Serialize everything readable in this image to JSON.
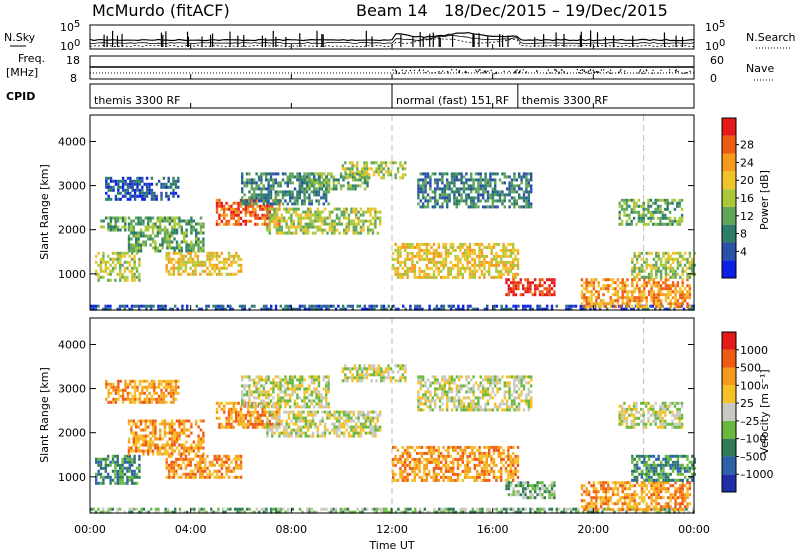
{
  "header": {
    "station": "McMurdo (fitACF)",
    "beam": "Beam 14",
    "date_range": "18/Dec/2015 – 19/Dec/2015"
  },
  "nsky_panel": {
    "left_label": "N.Sky",
    "right_label": "N.Search",
    "left_ticks": [
      {
        "base": "10",
        "exp": "5"
      },
      {
        "base": "10",
        "exp": "0"
      }
    ],
    "right_ticks": [
      {
        "base": "10",
        "exp": "5"
      },
      {
        "base": "10",
        "exp": "0"
      }
    ]
  },
  "freq_panel": {
    "left_label": "Freq.",
    "left_unit": "[MHz]",
    "left_ticks": [
      "18",
      "8"
    ],
    "right_label": "Nave",
    "right_ticks": [
      "60",
      "0"
    ]
  },
  "cpid_panel": {
    "label": "CPID",
    "segments": [
      {
        "name": "themis 3300 RF",
        "start_h": 0.0,
        "end_h": 12.0
      },
      {
        "name": "normal (fast) 151 RF",
        "start_h": 12.0,
        "end_h": 17.0
      },
      {
        "name": "themis 3300 RF",
        "start_h": 17.0,
        "end_h": 22.0
      }
    ],
    "dashed_marks_h": [
      12.0,
      22.0
    ]
  },
  "x_axis": {
    "label": "Time UT",
    "ticks": [
      "00:00",
      "04:00",
      "08:00",
      "12:00",
      "16:00",
      "20:00",
      "00:00"
    ],
    "range_h": [
      0,
      24
    ]
  },
  "chart_data": [
    {
      "type": "heatmap",
      "quantity": "Power",
      "ylabel": "Slant Range [km]",
      "ylim": [
        180,
        4600
      ],
      "yticks": [
        1000,
        2000,
        3000,
        4000
      ],
      "xlim": [
        0,
        24
      ],
      "colorbar": {
        "label": "Power [dB]",
        "ticks": [
          "4",
          "8",
          "12",
          "16",
          "20",
          "24",
          "28"
        ],
        "colors": [
          "#0b22e5",
          "#2a50a8",
          "#2e7d6a",
          "#5fa55a",
          "#a8c83a",
          "#f2c22a",
          "#f59a1b",
          "#ef5a14",
          "#e41a1a"
        ]
      },
      "echo_regions": [
        {
          "t0": 0.0,
          "t1": 24.0,
          "r0": 180,
          "r1": 300,
          "level": 1
        },
        {
          "t0": 0.2,
          "t1": 2.0,
          "r0": 850,
          "r1": 1500,
          "level": 4
        },
        {
          "t0": 0.4,
          "t1": 1.4,
          "r0": 2000,
          "r1": 2300,
          "level": 3
        },
        {
          "t0": 0.6,
          "t1": 3.5,
          "r0": 2700,
          "r1": 3200,
          "level": 1
        },
        {
          "t0": 1.5,
          "t1": 4.5,
          "r0": 1500,
          "r1": 2300,
          "level": 3
        },
        {
          "t0": 3.0,
          "t1": 6.0,
          "r0": 1000,
          "r1": 1500,
          "level": 5
        },
        {
          "t0": 5.0,
          "t1": 7.5,
          "r0": 2100,
          "r1": 2700,
          "level": 7
        },
        {
          "t0": 6.0,
          "t1": 9.5,
          "r0": 2600,
          "r1": 3300,
          "level": 2
        },
        {
          "t0": 7.0,
          "t1": 11.5,
          "r0": 1900,
          "r1": 2500,
          "level": 4
        },
        {
          "t0": 8.5,
          "t1": 11.0,
          "r0": 2900,
          "r1": 3300,
          "level": 3
        },
        {
          "t0": 10.0,
          "t1": 12.5,
          "r0": 3200,
          "r1": 3550,
          "level": 4
        },
        {
          "t0": 12.0,
          "t1": 17.0,
          "r0": 900,
          "r1": 1700,
          "level": 5
        },
        {
          "t0": 13.0,
          "t1": 17.5,
          "r0": 2500,
          "r1": 3300,
          "level": 2
        },
        {
          "t0": 16.5,
          "t1": 18.5,
          "r0": 500,
          "r1": 900,
          "level": 8
        },
        {
          "t0": 19.5,
          "t1": 23.8,
          "r0": 250,
          "r1": 900,
          "level": 6
        },
        {
          "t0": 21.0,
          "t1": 23.5,
          "r0": 2100,
          "r1": 2700,
          "level": 3
        },
        {
          "t0": 21.5,
          "t1": 24.0,
          "r0": 900,
          "r1": 1500,
          "level": 4
        }
      ]
    },
    {
      "type": "heatmap",
      "quantity": "Velocity",
      "ylabel": "Slant Range [km]",
      "ylim": [
        180,
        4600
      ],
      "yticks": [
        1000,
        2000,
        3000,
        4000
      ],
      "xlim": [
        0,
        24
      ],
      "colorbar": {
        "label": "Velocity [m s⁻¹]",
        "ticks": [
          "1000",
          "500",
          "100",
          "25",
          "–25",
          "–100",
          "–500",
          "–1000"
        ],
        "colors": [
          "#1f2fa8",
          "#2b62a8",
          "#2f7d56",
          "#69b840",
          "#c9c9c2",
          "#f6c126",
          "#f59a1b",
          "#ef5a14",
          "#e41a1a"
        ]
      },
      "echo_regions": [
        {
          "t0": 0.0,
          "t1": 24.0,
          "r0": 180,
          "r1": 300,
          "level": 3
        },
        {
          "t0": 0.2,
          "t1": 2.0,
          "r0": 850,
          "r1": 1500,
          "level": 2
        },
        {
          "t0": 0.6,
          "t1": 3.5,
          "r0": 2700,
          "r1": 3200,
          "level": 6
        },
        {
          "t0": 1.5,
          "t1": 4.5,
          "r0": 1500,
          "r1": 2300,
          "level": 6
        },
        {
          "t0": 3.0,
          "t1": 6.0,
          "r0": 1000,
          "r1": 1500,
          "level": 6
        },
        {
          "t0": 5.0,
          "t1": 7.5,
          "r0": 2100,
          "r1": 2700,
          "level": 6
        },
        {
          "t0": 6.0,
          "t1": 9.5,
          "r0": 2600,
          "r1": 3300,
          "level": 4
        },
        {
          "t0": 7.0,
          "t1": 11.5,
          "r0": 1900,
          "r1": 2500,
          "level": 4
        },
        {
          "t0": 10.0,
          "t1": 12.5,
          "r0": 3200,
          "r1": 3550,
          "level": 4
        },
        {
          "t0": 12.0,
          "t1": 17.0,
          "r0": 900,
          "r1": 1700,
          "level": 6
        },
        {
          "t0": 13.0,
          "t1": 17.5,
          "r0": 2500,
          "r1": 3300,
          "level": 4
        },
        {
          "t0": 16.5,
          "t1": 18.5,
          "r0": 500,
          "r1": 900,
          "level": 3
        },
        {
          "t0": 19.5,
          "t1": 23.8,
          "r0": 250,
          "r1": 900,
          "level": 6
        },
        {
          "t0": 21.0,
          "t1": 23.5,
          "r0": 2100,
          "r1": 2700,
          "level": 4
        },
        {
          "t0": 21.5,
          "t1": 24.0,
          "r0": 900,
          "r1": 1500,
          "level": 2
        }
      ]
    }
  ]
}
